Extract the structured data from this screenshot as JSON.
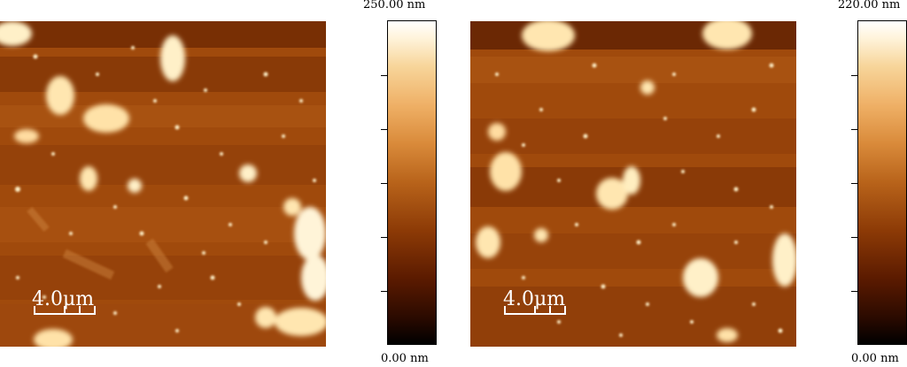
{
  "panels": [
    {
      "scalebar_label": "4.0μm",
      "colorbar": {
        "max_label": "250.00 nm",
        "min_label": "0.00 nm",
        "max_value": 250.0,
        "min_value": 0.0,
        "unit": "nm"
      }
    },
    {
      "scalebar_label": "4.0μm",
      "colorbar": {
        "max_label": "220.00 nm",
        "min_label": "0.00 nm",
        "max_value": 220.0,
        "min_value": 0.0,
        "unit": "nm"
      }
    }
  ],
  "colors": {
    "background_mid": "#a04a0c",
    "band_dark": "#7a3005",
    "band_light": "#b8601c",
    "particle": "#fff0c8",
    "flake": "#ffe6b0"
  }
}
